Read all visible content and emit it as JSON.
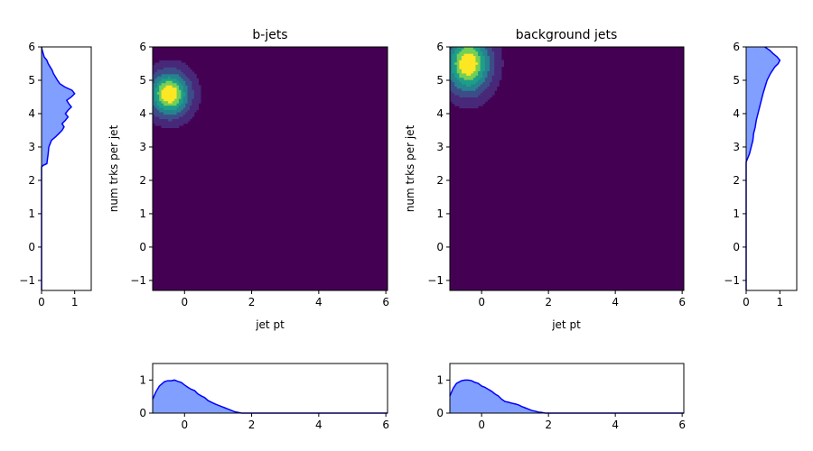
{
  "chart_data": [
    {
      "type": "heatmap",
      "title": "b-jets",
      "xlabel": "jet pt",
      "ylabel": "num trks per jet",
      "xlim": [
        -0.95,
        6.05
      ],
      "ylim": [
        -1.3,
        6.0
      ],
      "x_ticks": [
        0,
        2,
        4,
        6
      ],
      "y_ticks": [
        -1,
        0,
        1,
        2,
        3,
        4,
        5,
        6
      ],
      "colormap": "viridis",
      "background_color": "#440154",
      "x_extent": [
        -0.95,
        1.65
      ],
      "y_extent": [
        2.5,
        6.0
      ],
      "bins": [
        40,
        52
      ],
      "peak": {
        "x": -0.45,
        "y": 4.6,
        "sx": 0.38,
        "sy": 0.42
      },
      "value_floor": 0.05,
      "contour_levels": [
        0,
        0.17,
        0.33,
        0.5,
        0.67,
        0.83,
        1.0
      ]
    },
    {
      "type": "heatmap",
      "title": "background jets",
      "xlabel": "jet pt",
      "ylabel": "num trks per jet",
      "xlim": [
        -0.95,
        6.05
      ],
      "ylim": [
        -1.3,
        6.0
      ],
      "x_ticks": [
        0,
        2,
        4,
        6
      ],
      "y_ticks": [
        -1,
        0,
        1,
        2,
        3,
        4,
        5,
        6
      ],
      "colormap": "viridis",
      "background_color": "#440154",
      "x_extent": [
        -0.95,
        1.85
      ],
      "y_extent": [
        2.6,
        6.0
      ],
      "bins": [
        40,
        52
      ],
      "peak": {
        "x": -0.4,
        "y": 5.5,
        "sx": 0.42,
        "sy": 0.55
      },
      "value_floor": 0.05,
      "contour_levels": [
        0,
        0.17,
        0.33,
        0.5,
        0.67,
        0.83,
        1.0
      ]
    },
    {
      "type": "area",
      "orientation": "horizontal",
      "xlim": [
        0,
        1.5
      ],
      "ylim": [
        -1.3,
        6.0
      ],
      "x_ticks": [
        0,
        1
      ],
      "y_ticks": [
        -1,
        0,
        1,
        2,
        3,
        4,
        5,
        6
      ],
      "fill_color": "#809fff",
      "line_color": "#0000ff",
      "y": [
        -1.3,
        2.4,
        2.45,
        2.5,
        2.8,
        3.0,
        3.2,
        3.3,
        3.4,
        3.5,
        3.6,
        3.7,
        3.8,
        3.9,
        4.0,
        4.1,
        4.2,
        4.3,
        4.4,
        4.5,
        4.6,
        4.7,
        4.8,
        4.9,
        5.0,
        5.1,
        5.2,
        5.3,
        5.4,
        5.5,
        5.6,
        5.7,
        5.8,
        5.9,
        6.0
      ],
      "values": [
        0,
        0,
        0.05,
        0.16,
        0.2,
        0.22,
        0.3,
        0.42,
        0.52,
        0.62,
        0.68,
        0.62,
        0.72,
        0.8,
        0.72,
        0.8,
        0.9,
        0.82,
        0.76,
        0.9,
        1.0,
        0.92,
        0.7,
        0.55,
        0.48,
        0.42,
        0.36,
        0.32,
        0.26,
        0.2,
        0.16,
        0.08,
        0.05,
        0.02,
        0
      ]
    },
    {
      "type": "area",
      "orientation": "horizontal",
      "xlim": [
        0,
        1.5
      ],
      "ylim": [
        -1.3,
        6.0
      ],
      "x_ticks": [
        0,
        1
      ],
      "y_ticks": [
        -1,
        0,
        1,
        2,
        3,
        4,
        5,
        6
      ],
      "fill_color": "#809fff",
      "line_color": "#0000ff",
      "y": [
        -1.3,
        2.55,
        2.6,
        2.8,
        3.0,
        3.2,
        3.4,
        3.6,
        3.8,
        4.0,
        4.2,
        4.4,
        4.6,
        4.8,
        5.0,
        5.2,
        5.4,
        5.5,
        5.6,
        5.7,
        5.8,
        5.9,
        6.0
      ],
      "values": [
        0,
        0,
        0.02,
        0.1,
        0.15,
        0.2,
        0.22,
        0.27,
        0.3,
        0.35,
        0.4,
        0.45,
        0.5,
        0.56,
        0.62,
        0.72,
        0.85,
        0.95,
        1.0,
        0.92,
        0.8,
        0.7,
        0.55
      ]
    },
    {
      "type": "area",
      "xlim": [
        -0.95,
        6.05
      ],
      "ylim": [
        0,
        1.5
      ],
      "x_ticks": [
        0,
        2,
        4,
        6
      ],
      "y_ticks": [
        0,
        1
      ],
      "fill_color": "#809fff",
      "line_color": "#0000ff",
      "x": [
        -0.95,
        -0.85,
        -0.75,
        -0.6,
        -0.5,
        -0.4,
        -0.3,
        -0.2,
        -0.1,
        0.0,
        0.1,
        0.2,
        0.3,
        0.4,
        0.5,
        0.6,
        0.7,
        0.8,
        0.9,
        1.0,
        1.1,
        1.2,
        1.3,
        1.4,
        1.5,
        1.6,
        1.7,
        6.05
      ],
      "values": [
        0.42,
        0.65,
        0.82,
        0.95,
        0.98,
        0.98,
        1.0,
        0.96,
        0.93,
        0.85,
        0.78,
        0.72,
        0.68,
        0.58,
        0.52,
        0.47,
        0.38,
        0.33,
        0.28,
        0.24,
        0.2,
        0.16,
        0.12,
        0.08,
        0.04,
        0.02,
        0.0,
        0.0
      ]
    },
    {
      "type": "area",
      "xlim": [
        -0.95,
        6.05
      ],
      "ylim": [
        0,
        1.5
      ],
      "x_ticks": [
        0,
        2,
        4,
        6
      ],
      "y_ticks": [
        0,
        1
      ],
      "fill_color": "#809fff",
      "line_color": "#0000ff",
      "x": [
        -0.95,
        -0.85,
        -0.75,
        -0.6,
        -0.5,
        -0.4,
        -0.3,
        -0.2,
        -0.1,
        0.0,
        0.1,
        0.2,
        0.3,
        0.4,
        0.5,
        0.6,
        0.7,
        0.8,
        0.9,
        1.0,
        1.1,
        1.2,
        1.3,
        1.4,
        1.5,
        1.6,
        1.7,
        1.8,
        1.9,
        6.05
      ],
      "values": [
        0.52,
        0.75,
        0.9,
        0.98,
        1.0,
        1.0,
        0.98,
        0.93,
        0.9,
        0.82,
        0.78,
        0.72,
        0.66,
        0.58,
        0.52,
        0.42,
        0.35,
        0.33,
        0.3,
        0.28,
        0.25,
        0.2,
        0.16,
        0.12,
        0.08,
        0.06,
        0.03,
        0.02,
        0.0,
        0.0
      ]
    }
  ]
}
